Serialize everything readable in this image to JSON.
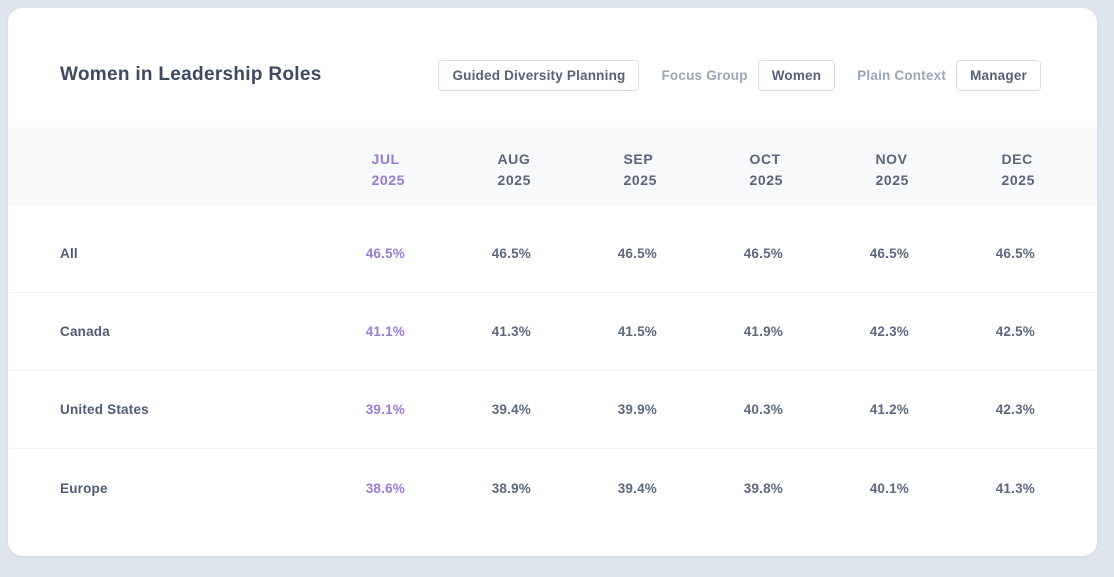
{
  "page": {
    "title": "Women in Leadership Roles"
  },
  "toolbar": {
    "planning_button": "Guided Diversity Planning",
    "focus_group_label": "Focus Group",
    "focus_group_value": "Women",
    "plain_context_label": "Plain Context",
    "plain_context_value": "Manager"
  },
  "table": {
    "columns": [
      {
        "month": "JUL",
        "year": "2025",
        "highlighted": true
      },
      {
        "month": "AUG",
        "year": "2025",
        "highlighted": false
      },
      {
        "month": "SEP",
        "year": "2025",
        "highlighted": false
      },
      {
        "month": "OCT",
        "year": "2025",
        "highlighted": false
      },
      {
        "month": "NOV",
        "year": "2025",
        "highlighted": false
      },
      {
        "month": "DEC",
        "year": "2025",
        "highlighted": false
      }
    ],
    "rows": [
      {
        "label": "All",
        "values": [
          "46.5%",
          "46.5%",
          "46.5%",
          "46.5%",
          "46.5%",
          "46.5%"
        ]
      },
      {
        "label": "Canada",
        "values": [
          "41.1%",
          "41.3%",
          "41.5%",
          "41.9%",
          "42.3%",
          "42.5%"
        ]
      },
      {
        "label": "United States",
        "values": [
          "39.1%",
          "39.4%",
          "39.9%",
          "40.3%",
          "41.2%",
          "42.3%"
        ]
      },
      {
        "label": "Europe",
        "values": [
          "38.6%",
          "38.9%",
          "39.4%",
          "39.8%",
          "40.1%",
          "41.3%"
        ]
      }
    ]
  },
  "colors": {
    "page_background": "#dee5ee",
    "card_background": "#ffffff",
    "header_band_background": "#f7f9fb",
    "title_text": "#3d4961",
    "slate_text": "#5d6880",
    "muted_label_text": "#9aa5b5",
    "highlight_purple": "#9c7bd4",
    "button_border": "#d7dde7",
    "row_divider": "#f0f2f6"
  }
}
